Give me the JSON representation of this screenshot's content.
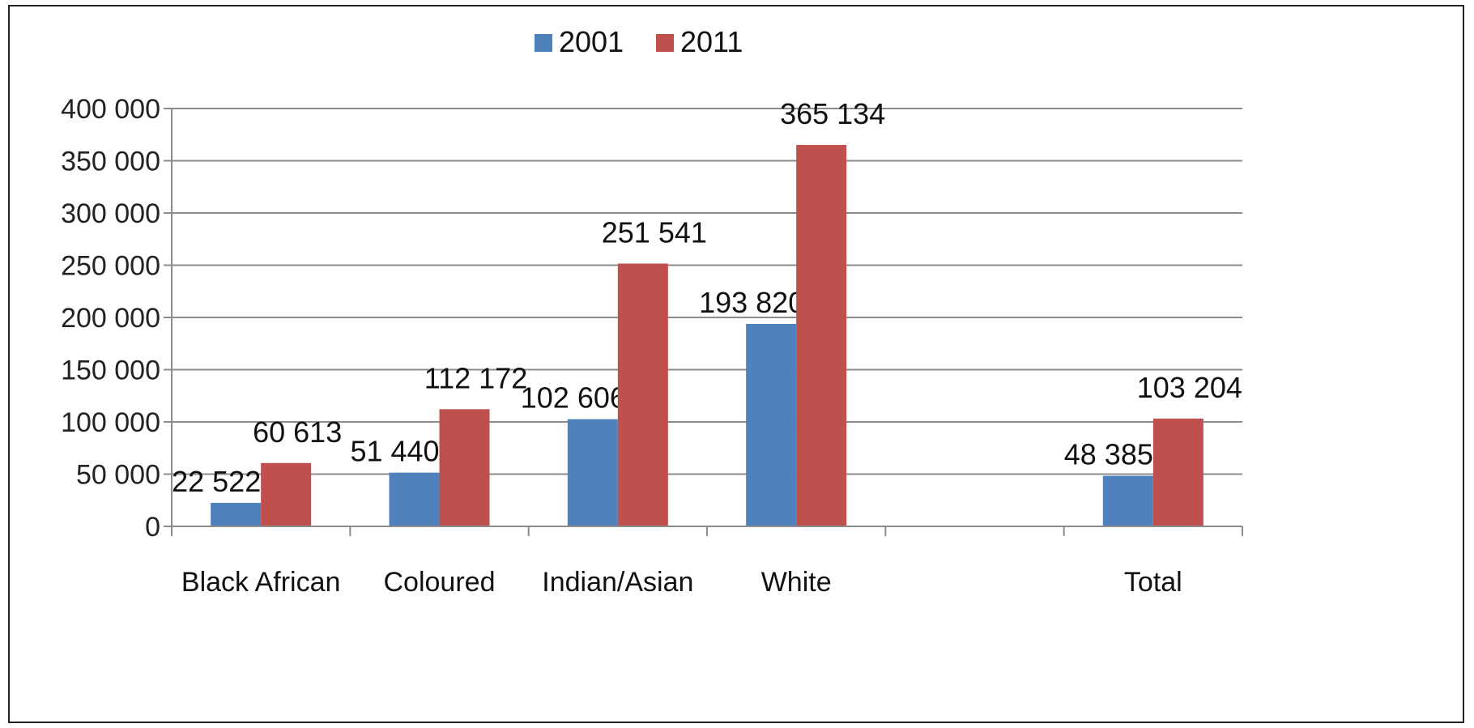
{
  "chart_data": {
    "type": "bar",
    "categories": [
      "Black African",
      "Coloured",
      "Indian/Asian",
      "White",
      "",
      "Total"
    ],
    "series": [
      {
        "name": "2001",
        "color": "#4F81BD",
        "values": [
          22522,
          51440,
          102606,
          193820,
          null,
          48385
        ],
        "labels": [
          "22 522",
          "51 440",
          "102 606",
          "193 820",
          "",
          "48 385"
        ]
      },
      {
        "name": "2011",
        "color": "#C0504D",
        "values": [
          60613,
          112172,
          251541,
          365134,
          null,
          103204
        ],
        "labels": [
          "60 613",
          "112 172",
          "251 541",
          "365 134",
          "",
          "103 204"
        ]
      }
    ],
    "ylim": [
      0,
      400000
    ],
    "yticks": [
      0,
      50000,
      100000,
      150000,
      200000,
      250000,
      300000,
      350000,
      400000
    ],
    "ytick_labels": [
      "0",
      "50 000",
      "100 000",
      "150 000",
      "200 000",
      "250 000",
      "300 000",
      "350 000",
      "400 000"
    ],
    "grid": true,
    "legend_position": "top-center",
    "title": "",
    "xlabel": "",
    "ylabel": ""
  }
}
